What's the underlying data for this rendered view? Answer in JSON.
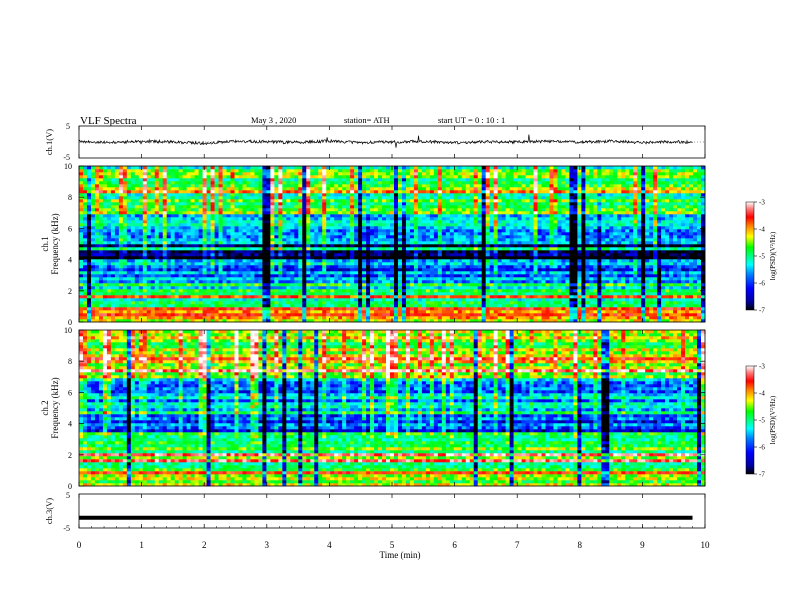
{
  "header": {
    "title": "VLF  Spectra",
    "date": "May 3  , 2020",
    "station": "station= ATH",
    "start": "start  UT  =    0  : 10 : 1"
  },
  "colors": {
    "colormap": [
      "#000000",
      "#0000a0",
      "#0000ff",
      "#0080ff",
      "#00ffff",
      "#00ff80",
      "#00ff00",
      "#ffff00",
      "#ff8000",
      "#ff0000",
      "#ff8080",
      "#ffffff"
    ]
  },
  "chart_data": [
    {
      "type": "line",
      "panel": "ch1-waveform",
      "ylabel": "ch.1(V)",
      "ylim": [
        -5,
        5
      ],
      "yticks": [
        "5",
        "-5"
      ],
      "x": [
        0,
        0.5,
        1,
        1.5,
        2,
        2.5,
        3,
        3.5,
        4,
        4.5,
        5,
        5.5,
        6,
        6.5,
        7,
        7.5,
        8,
        8.5,
        9,
        9.5,
        9.8
      ],
      "values": [
        0.1,
        -0.2,
        0.3,
        0.0,
        -0.4,
        0.2,
        0.1,
        -0.1,
        0.3,
        -0.2,
        0.0,
        0.2,
        -0.3,
        0.1,
        0.0,
        0.2,
        -0.1,
        0.3,
        -0.2,
        0.1,
        -0.1
      ]
    },
    {
      "type": "heatmap",
      "panel": "ch1-spectrogram",
      "ylabel": "ch.1",
      "ylabel2": "Frequency  (kHz)",
      "ylim": [
        0,
        10
      ],
      "yticks": [
        "10",
        "8",
        "6",
        "4",
        "2",
        "0"
      ],
      "colorbar": {
        "label": "log(PSD)(V²/Hz)",
        "ticks": [
          "-3",
          "-4",
          "-5",
          "-6",
          "-7"
        ],
        "range": [
          -7,
          -3
        ]
      },
      "band_levels": [
        {
          "f_range": [
            0,
            1
          ],
          "logpsd": -4.0
        },
        {
          "f_range": [
            1,
            2.5
          ],
          "logpsd": -5.3
        },
        {
          "f_range": [
            2.5,
            4
          ],
          "logpsd": -6.0
        },
        {
          "f_range": [
            4,
            5
          ],
          "logpsd": -6.8
        },
        {
          "f_range": [
            5,
            7
          ],
          "logpsd": -5.8
        },
        {
          "f_range": [
            7,
            10
          ],
          "logpsd": -5.0
        }
      ]
    },
    {
      "type": "heatmap",
      "panel": "ch2-spectrogram",
      "ylabel": "ch.2",
      "ylabel2": "Frequency  (kHz)",
      "ylim": [
        0,
        10
      ],
      "yticks": [
        "10",
        "8",
        "6",
        "4",
        "2",
        "0"
      ],
      "colorbar": {
        "label": "log(PSD)(V²/Hz)",
        "ticks": [
          "-3",
          "-4",
          "-5",
          "-6",
          "-7"
        ],
        "range": [
          -7,
          -3
        ]
      },
      "band_levels": [
        {
          "f_range": [
            0,
            2
          ],
          "logpsd": -4.8
        },
        {
          "f_range": [
            2,
            3.5
          ],
          "logpsd": -5.0
        },
        {
          "f_range": [
            3.5,
            5
          ],
          "logpsd": -6.2
        },
        {
          "f_range": [
            5,
            7
          ],
          "logpsd": -5.8
        },
        {
          "f_range": [
            7,
            10
          ],
          "logpsd": -4.6
        }
      ]
    },
    {
      "type": "line",
      "panel": "ch3-waveform",
      "ylabel": "ch.3(V)",
      "ylim": [
        -5,
        5
      ],
      "yticks": [
        "5",
        "-5"
      ],
      "x": [
        0,
        9.8
      ],
      "values": [
        -2,
        -2
      ]
    }
  ],
  "xaxis": {
    "label": "Time  (min)",
    "range": [
      0,
      10
    ],
    "ticks": [
      "0",
      "1",
      "2",
      "3",
      "4",
      "5",
      "6",
      "7",
      "8",
      "9",
      "10"
    ]
  }
}
